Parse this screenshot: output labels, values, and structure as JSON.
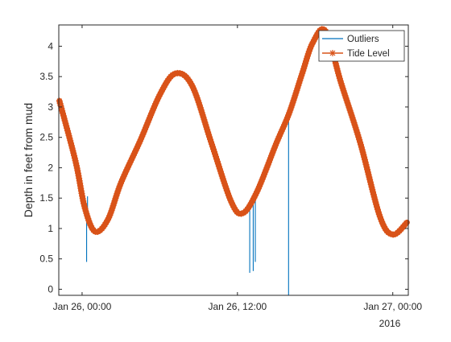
{
  "colors": {
    "outliers": "#0072BD",
    "tide": "#D95319",
    "axis": "#262626",
    "background": "#ffffff"
  },
  "chart_data": {
    "type": "line",
    "title": "",
    "xlabel": "",
    "ylabel": "Depth in feet from mud",
    "x_unit": "hours since Jan 26, 00:00",
    "xlim": [
      -1.8,
      25.2
    ],
    "ylim": [
      -0.1,
      4.35
    ],
    "y_ticks": [
      0,
      0.5,
      1,
      1.5,
      2,
      2.5,
      3,
      3.5,
      4
    ],
    "y_tick_labels": [
      "0",
      "0.5",
      "1",
      "1.5",
      "2",
      "2.5",
      "3",
      "3.5",
      "4"
    ],
    "x_ticks": [
      0,
      12,
      24
    ],
    "x_tick_labels": [
      "Jan 26, 00:00",
      "Jan 26, 12:00",
      "Jan 27, 00:00"
    ],
    "x_secondary_label": "2016",
    "grid": false,
    "legend_position": "top-right",
    "series": [
      {
        "name": "Outliers",
        "style": "stem",
        "points": [
          {
            "x": 0.35,
            "y": 0.45
          },
          {
            "x": 0.42,
            "y": 1.53
          },
          {
            "x": 12.95,
            "y": 0.27
          },
          {
            "x": 13.22,
            "y": 0.3
          },
          {
            "x": 13.38,
            "y": 0.45
          },
          {
            "x": 13.45,
            "y": 1.55
          },
          {
            "x": 15.95,
            "y": -0.1
          },
          {
            "x": 16.0,
            "y": 2.9
          }
        ]
      },
      {
        "name": "Tide Level",
        "style": "line-with-star-markers",
        "points": [
          {
            "x": -1.75,
            "y": 3.1
          },
          {
            "x": -0.5,
            "y": 2.1
          },
          {
            "x": 0.2,
            "y": 1.35
          },
          {
            "x": 1.0,
            "y": 0.95
          },
          {
            "x": 2.0,
            "y": 1.15
          },
          {
            "x": 3.0,
            "y": 1.75
          },
          {
            "x": 4.5,
            "y": 2.45
          },
          {
            "x": 6.0,
            "y": 3.2
          },
          {
            "x": 7.2,
            "y": 3.55
          },
          {
            "x": 8.5,
            "y": 3.35
          },
          {
            "x": 10.0,
            "y": 2.4
          },
          {
            "x": 11.5,
            "y": 1.45
          },
          {
            "x": 12.4,
            "y": 1.25
          },
          {
            "x": 13.5,
            "y": 1.6
          },
          {
            "x": 15.0,
            "y": 2.4
          },
          {
            "x": 16.0,
            "y": 2.9
          },
          {
            "x": 17.0,
            "y": 3.55
          },
          {
            "x": 17.8,
            "y": 4.05
          },
          {
            "x": 18.8,
            "y": 4.25
          },
          {
            "x": 20.0,
            "y": 3.4
          },
          {
            "x": 21.5,
            "y": 2.4
          },
          {
            "x": 23.0,
            "y": 1.2
          },
          {
            "x": 24.0,
            "y": 0.9
          },
          {
            "x": 25.1,
            "y": 1.1
          }
        ]
      }
    ]
  }
}
